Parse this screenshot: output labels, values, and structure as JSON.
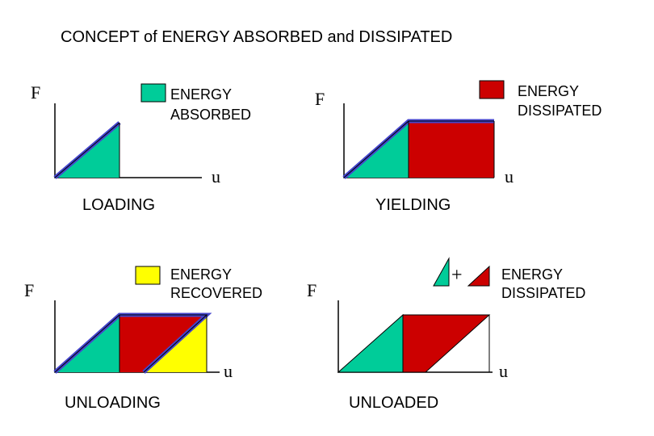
{
  "title": "CONCEPT of ENERGY ABSORBED and DISSIPATED",
  "colors": {
    "absorbed": "#00CC99",
    "dissipated": "#CC0000",
    "recovered": "#FFFF00",
    "loadpath": "#4444CC",
    "axis": "#000000"
  },
  "axes": {
    "force": "F",
    "displacement": "u"
  },
  "panels": {
    "loading": {
      "caption": "LOADING",
      "legend": {
        "line1": "ENERGY",
        "line2": "ABSORBED"
      }
    },
    "yielding": {
      "caption": "YIELDING",
      "legend": {
        "line1": "ENERGY",
        "line2": "DISSIPATED"
      }
    },
    "unloading": {
      "caption": "UNLOADING",
      "legend": {
        "line1": "ENERGY",
        "line2": "RECOVERED"
      }
    },
    "unloaded": {
      "caption": "UNLOADED",
      "plus": "+",
      "legend": {
        "line1": "ENERGY",
        "line2": "DISSIPATED"
      }
    }
  }
}
